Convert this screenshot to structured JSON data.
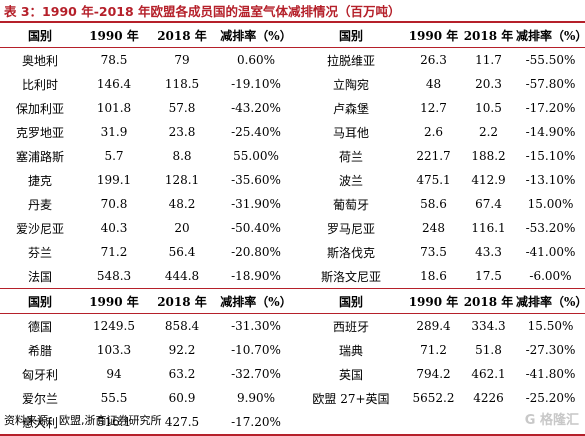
{
  "caption": "表 3：1990 年-2018 年欧盟各成员国的温室气体减排情况（百万吨）",
  "header": [
    "国别",
    "1990 年",
    "2018 年",
    "减排率（%）",
    "国别",
    "1990 年",
    "2018 年",
    "减排率（%）"
  ],
  "rows_top": [
    [
      "奥地利",
      "78.5",
      "79",
      "0.60%",
      "拉脱维亚",
      "26.3",
      "11.7",
      "-55.50%"
    ],
    [
      "比利时",
      "146.4",
      "118.5",
      "-19.10%",
      "立陶宛",
      "48",
      "20.3",
      "-57.80%"
    ],
    [
      "保加利亚",
      "101.8",
      "57.8",
      "-43.20%",
      "卢森堡",
      "12.7",
      "10.5",
      "-17.20%"
    ],
    [
      "克罗地亚",
      "31.9",
      "23.8",
      "-25.40%",
      "马耳他",
      "2.6",
      "2.2",
      "-14.90%"
    ],
    [
      "塞浦路斯",
      "5.7",
      "8.8",
      "55.00%",
      "荷兰",
      "221.7",
      "188.2",
      "-15.10%"
    ],
    [
      "捷克",
      "199.1",
      "128.1",
      "-35.60%",
      "波兰",
      "475.1",
      "412.9",
      "-13.10%"
    ],
    [
      "丹麦",
      "70.8",
      "48.2",
      "-31.90%",
      "葡萄牙",
      "58.6",
      "67.4",
      "15.00%"
    ],
    [
      "爱沙尼亚",
      "40.3",
      "20",
      "-50.40%",
      "罗马尼亚",
      "248",
      "116.1",
      "-53.20%"
    ],
    [
      "芬兰",
      "71.2",
      "56.4",
      "-20.80%",
      "斯洛伐克",
      "73.5",
      "43.3",
      "-41.00%"
    ],
    [
      "法国",
      "548.3",
      "444.8",
      "-18.90%",
      "斯洛文尼亚",
      "18.6",
      "17.5",
      "-6.00%"
    ]
  ],
  "rows_bottom": [
    [
      "德国",
      "1249.5",
      "858.4",
      "-31.30%",
      "西班牙",
      "289.4",
      "334.3",
      "15.50%"
    ],
    [
      "希腊",
      "103.3",
      "92.2",
      "-10.70%",
      "瑞典",
      "71.2",
      "51.8",
      "-27.30%"
    ],
    [
      "匈牙利",
      "94",
      "63.2",
      "-32.70%",
      "英国",
      "794.2",
      "462.1",
      "-41.80%"
    ],
    [
      "爱尔兰",
      "55.5",
      "60.9",
      "9.90%",
      "欧盟 27+英国",
      "5652.2",
      "4226",
      "-25.20%"
    ],
    [
      "意大利",
      "516.1",
      "427.5",
      "-17.20%",
      "",
      "",
      "",
      ""
    ]
  ],
  "source": "资料来源：欧盟,浙商证券研究所",
  "watermark": "格隆汇"
}
